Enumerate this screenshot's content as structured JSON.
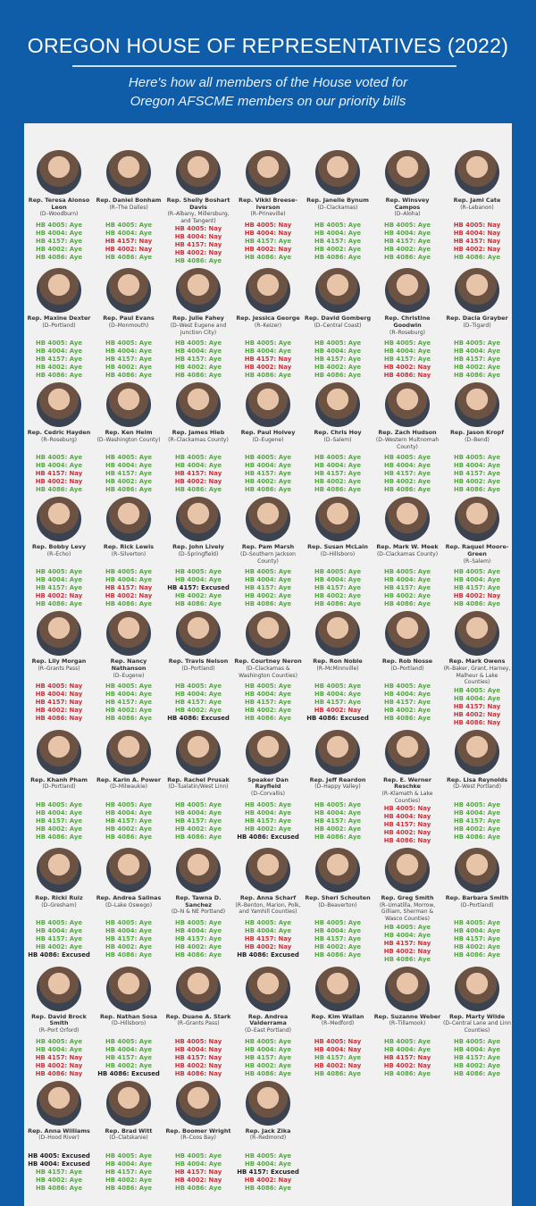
{
  "header": {
    "title": "OREGON HOUSE OF REPRESENTATIVES (2022)",
    "subtitle_line1": "Here's how all members of the House voted for",
    "subtitle_line2": "Oregon AFSCME members on our priority bills"
  },
  "colors": {
    "background": "#0f5da8",
    "panel": "#f1f1f1",
    "aye": "#56a845",
    "nay": "#c5363d",
    "excused": "#222222"
  },
  "bills": [
    "HB 4005",
    "HB 4004",
    "HB 4157",
    "HB 4002",
    "HB 4086"
  ],
  "members": [
    {
      "name": "Rep. Teresa Alonso Leon",
      "district": "(D–Woodburn)",
      "votes": [
        "Aye",
        "Aye",
        "Aye",
        "Aye",
        "Aye"
      ]
    },
    {
      "name": "Rep. Daniel Bonham",
      "district": "(R–The Dalles)",
      "votes": [
        "Aye",
        "Aye",
        "Nay",
        "Nay",
        "Aye"
      ]
    },
    {
      "name": "Rep. Shelly Boshart Davis",
      "district": "(R–Albany, Millersburg, and Tangent)",
      "votes": [
        "Nay",
        "Nay",
        "Nay",
        "Nay",
        "Aye"
      ]
    },
    {
      "name": "Rep. Vikki Breese-Iverson",
      "district": "(R–Prineville)",
      "votes": [
        "Nay",
        "Nay",
        "Aye",
        "Nay",
        "Aye"
      ]
    },
    {
      "name": "Rep. Janelle Bynum",
      "district": "(D–Clackamas)",
      "votes": [
        "Aye",
        "Aye",
        "Aye",
        "Aye",
        "Aye"
      ]
    },
    {
      "name": "Rep. Winsvey Campos",
      "district": "(D–Aloha)",
      "votes": [
        "Aye",
        "Aye",
        "Aye",
        "Aye",
        "Aye"
      ]
    },
    {
      "name": "Rep. Jami Cate",
      "district": "(R–Lebanon)",
      "votes": [
        "Nay",
        "Nay",
        "Nay",
        "Nay",
        "Aye"
      ]
    },
    {
      "name": "Rep. Maxine Dexter",
      "district": "(D–Portland)",
      "votes": [
        "Aye",
        "Aye",
        "Aye",
        "Aye",
        "Aye"
      ]
    },
    {
      "name": "Rep. Paul Evans",
      "district": "(D–Monmouth)",
      "votes": [
        "Aye",
        "Aye",
        "Aye",
        "Aye",
        "Aye"
      ]
    },
    {
      "name": "Rep. Julie Fahey",
      "district": "(D–West Eugene and Junction City)",
      "votes": [
        "Aye",
        "Aye",
        "Aye",
        "Aye",
        "Aye"
      ]
    },
    {
      "name": "Rep. Jessica George",
      "district": "(R–Keizer)",
      "votes": [
        "Aye",
        "Aye",
        "Nay",
        "Nay",
        "Aye"
      ]
    },
    {
      "name": "Rep. David Gomberg",
      "district": "(D–Central Coast)",
      "votes": [
        "Aye",
        "Aye",
        "Aye",
        "Aye",
        "Aye"
      ]
    },
    {
      "name": "Rep. Christine Goodwin",
      "district": "(R–Roseburg)",
      "votes": [
        "Aye",
        "Aye",
        "Aye",
        "Nay",
        "Nay"
      ]
    },
    {
      "name": "Rep. Dacia Grayber",
      "district": "(D–Tigard)",
      "votes": [
        "Aye",
        "Aye",
        "Aye",
        "Aye",
        "Aye"
      ]
    },
    {
      "name": "Rep. Cedric Hayden",
      "district": "(R–Roseburg)",
      "votes": [
        "Aye",
        "Aye",
        "Nay",
        "Nay",
        "Aye"
      ]
    },
    {
      "name": "Rep. Ken Helm",
      "district": "(D–Washington County)",
      "votes": [
        "Aye",
        "Aye",
        "Aye",
        "Aye",
        "Aye"
      ]
    },
    {
      "name": "Rep. James Hieb",
      "district": "(R–Clackamas County)",
      "votes": [
        "Aye",
        "Aye",
        "Nay",
        "Nay",
        "Aye"
      ]
    },
    {
      "name": "Rep. Paul Holvey",
      "district": "(D–Eugene)",
      "votes": [
        "Aye",
        "Aye",
        "Aye",
        "Aye",
        "Aye"
      ]
    },
    {
      "name": "Rep. Chris Hoy",
      "district": "(D–Salem)",
      "votes": [
        "Aye",
        "Aye",
        "Aye",
        "Aye",
        "Aye"
      ]
    },
    {
      "name": "Rep. Zach Hudson",
      "district": "(D–Western Multnomah County)",
      "votes": [
        "Aye",
        "Aye",
        "Aye",
        "Aye",
        "Aye"
      ]
    },
    {
      "name": "Rep. Jason Kropf",
      "district": "(D–Bend)",
      "votes": [
        "Aye",
        "Aye",
        "Aye",
        "Aye",
        "Aye"
      ]
    },
    {
      "name": "Rep. Bobby Levy",
      "district": "(R–Echo)",
      "votes": [
        "Aye",
        "Aye",
        "Aye",
        "Nay",
        "Aye"
      ]
    },
    {
      "name": "Rep. Rick Lewis",
      "district": "(R–Silverton)",
      "votes": [
        "Aye",
        "Aye",
        "Nay",
        "Nay",
        "Aye"
      ]
    },
    {
      "name": "Rep. John Lively",
      "district": "(D–Springfield)",
      "votes": [
        "Aye",
        "Aye",
        "Excused",
        "Aye",
        "Aye"
      ]
    },
    {
      "name": "Rep. Pam Marsh",
      "district": "(D–Southern Jackson County)",
      "votes": [
        "Aye",
        "Aye",
        "Aye",
        "Aye",
        "Aye"
      ]
    },
    {
      "name": "Rep. Susan McLain",
      "district": "(D–Hillsboro)",
      "votes": [
        "Aye",
        "Aye",
        "Aye",
        "Aye",
        "Aye"
      ]
    },
    {
      "name": "Rep. Mark W. Meek",
      "district": "(D–Clackamas County)",
      "votes": [
        "Aye",
        "Aye",
        "Aye",
        "Aye",
        "Aye"
      ]
    },
    {
      "name": "Rep. Raquel Moore-Green",
      "district": "(R–Salem)",
      "votes": [
        "Aye",
        "Aye",
        "Aye",
        "Nay",
        "Aye"
      ]
    },
    {
      "name": "Rep. Lily Morgan",
      "district": "(R–Grants Pass)",
      "votes": [
        "Nay",
        "Nay",
        "Nay",
        "Nay",
        "Nay"
      ]
    },
    {
      "name": "Rep. Nancy Nathanson",
      "district": "(D–Eugene)",
      "votes": [
        "Aye",
        "Aye",
        "Aye",
        "Aye",
        "Aye"
      ]
    },
    {
      "name": "Rep. Travis Nelson",
      "district": "(D–Portland)",
      "votes": [
        "Aye",
        "Aye",
        "Aye",
        "Aye",
        "Excused"
      ]
    },
    {
      "name": "Rep. Courtney Neron",
      "district": "(D–Clackamas & Washington Counties)",
      "votes": [
        "Aye",
        "Aye",
        "Aye",
        "Aye",
        "Aye"
      ]
    },
    {
      "name": "Rep. Ron Noble",
      "district": "(R–McMinnville)",
      "votes": [
        "Aye",
        "Aye",
        "Aye",
        "Nay",
        "Excused"
      ]
    },
    {
      "name": "Rep. Rob Nosse",
      "district": "(D–Portland)",
      "votes": [
        "Aye",
        "Aye",
        "Aye",
        "Aye",
        "Aye"
      ]
    },
    {
      "name": "Rep. Mark Owens",
      "district": "(R–Baker, Grant, Harney, Malheur & Lake Counties)",
      "votes": [
        "Aye",
        "Aye",
        "Nay",
        "Nay",
        "Nay"
      ]
    },
    {
      "name": "Rep. Khanh Pham",
      "district": "(D–Portland)",
      "votes": [
        "Aye",
        "Aye",
        "Aye",
        "Aye",
        "Aye"
      ]
    },
    {
      "name": "Rep. Karin A. Power",
      "district": "(D–Milwaukie)",
      "votes": [
        "Aye",
        "Aye",
        "Aye",
        "Aye",
        "Aye"
      ]
    },
    {
      "name": "Rep. Rachel Prusak",
      "district": "(D–Tualatin/West Linn)",
      "votes": [
        "Aye",
        "Aye",
        "Aye",
        "Aye",
        "Aye"
      ]
    },
    {
      "name": "Speaker Dan Rayfield",
      "district": "(D–Corvallis)",
      "votes": [
        "Aye",
        "Aye",
        "Aye",
        "Aye",
        "Excused"
      ]
    },
    {
      "name": "Rep. Jeff Reardon",
      "district": "(D–Happy Valley)",
      "votes": [
        "Aye",
        "Aye",
        "Aye",
        "Aye",
        "Aye"
      ]
    },
    {
      "name": "Rep. E. Werner Reschke",
      "district": "(R–Klamath & Lake Counties)",
      "votes": [
        "Nay",
        "Nay",
        "Nay",
        "Nay",
        "Nay"
      ]
    },
    {
      "name": "Rep. Lisa Reynolds",
      "district": "(D–West Portland)",
      "votes": [
        "Aye",
        "Aye",
        "Aye",
        "Aye",
        "Aye"
      ]
    },
    {
      "name": "Rep. Ricki Ruiz",
      "district": "(D–Gresham)",
      "votes": [
        "Aye",
        "Aye",
        "Aye",
        "Aye",
        "Excused"
      ]
    },
    {
      "name": "Rep. Andrea Salinas",
      "district": "(D–Lake Oswego)",
      "votes": [
        "Aye",
        "Aye",
        "Aye",
        "Aye",
        "Aye"
      ]
    },
    {
      "name": "Rep. Tawna D. Sanchez",
      "district": "(D–N & NE Portland)",
      "votes": [
        "Aye",
        "Aye",
        "Aye",
        "Aye",
        "Aye"
      ]
    },
    {
      "name": "Rep. Anna Scharf",
      "district": "(R–Benton, Marion, Polk, and Yamhill Counties)",
      "votes": [
        "Aye",
        "Aye",
        "Nay",
        "Nay",
        "Excused"
      ]
    },
    {
      "name": "Rep. Sheri Schouten",
      "district": "(D–Beaverton)",
      "votes": [
        "Aye",
        "Aye",
        "Aye",
        "Aye",
        "Aye"
      ]
    },
    {
      "name": "Rep. Greg Smith",
      "district": "(R–Umatilla, Morrow, Gilliam, Sherman & Wasco Counties)",
      "votes": [
        "Aye",
        "Aye",
        "Nay",
        "Nay",
        "Aye"
      ]
    },
    {
      "name": "Rep. Barbara Smith",
      "district": "(D–Portland)",
      "votes": [
        "Aye",
        "Aye",
        "Aye",
        "Aye",
        "Aye"
      ]
    },
    {
      "name": "Rep. David Brock Smith",
      "district": "(R–Port Orford)",
      "votes": [
        "Aye",
        "Aye",
        "Nay",
        "Nay",
        "Nay"
      ]
    },
    {
      "name": "Rep. Nathan Sosa",
      "district": "(D–Hillsboro)",
      "votes": [
        "Aye",
        "Aye",
        "Aye",
        "Aye",
        "Excused"
      ]
    },
    {
      "name": "Rep. Duane A. Stark",
      "district": "(R–Grants Pass)",
      "votes": [
        "Nay",
        "Nay",
        "Nay",
        "Nay",
        "Nay"
      ]
    },
    {
      "name": "Rep. Andrea Valderrama",
      "district": "(D–East Portland)",
      "votes": [
        "Aye",
        "Aye",
        "Aye",
        "Aye",
        "Aye"
      ]
    },
    {
      "name": "Rep. Kim Wallan",
      "district": "(R–Medford)",
      "votes": [
        "Nay",
        "Nay",
        "Aye",
        "Nay",
        "Aye"
      ]
    },
    {
      "name": "Rep. Suzanne Weber",
      "district": "(R–Tillamook)",
      "votes": [
        "Aye",
        "Aye",
        "Nay",
        "Nay",
        "Aye"
      ]
    },
    {
      "name": "Rep. Marty Wilde",
      "district": "(D–Central Lane and Linn Counties)",
      "votes": [
        "Aye",
        "Aye",
        "Aye",
        "Aye",
        "Aye"
      ]
    },
    {
      "name": "Rep. Anna Williams",
      "district": "(D–Hood River)",
      "votes": [
        "Excused",
        "Excused",
        "Aye",
        "Aye",
        "Aye"
      ]
    },
    {
      "name": "Rep. Brad Witt",
      "district": "(D–Clatskanie)",
      "votes": [
        "Aye",
        "Aye",
        "Aye",
        "Aye",
        "Aye"
      ]
    },
    {
      "name": "Rep. Boomer Wright",
      "district": "(R–Coos Bay)",
      "votes": [
        "Aye",
        "Aye",
        "Nay",
        "Nay",
        "Aye"
      ]
    },
    {
      "name": "Rep. Jack Zika",
      "district": "(R–Redmond)",
      "votes": [
        "Aye",
        "Aye",
        "Excused",
        "Nay",
        "Aye"
      ]
    }
  ]
}
